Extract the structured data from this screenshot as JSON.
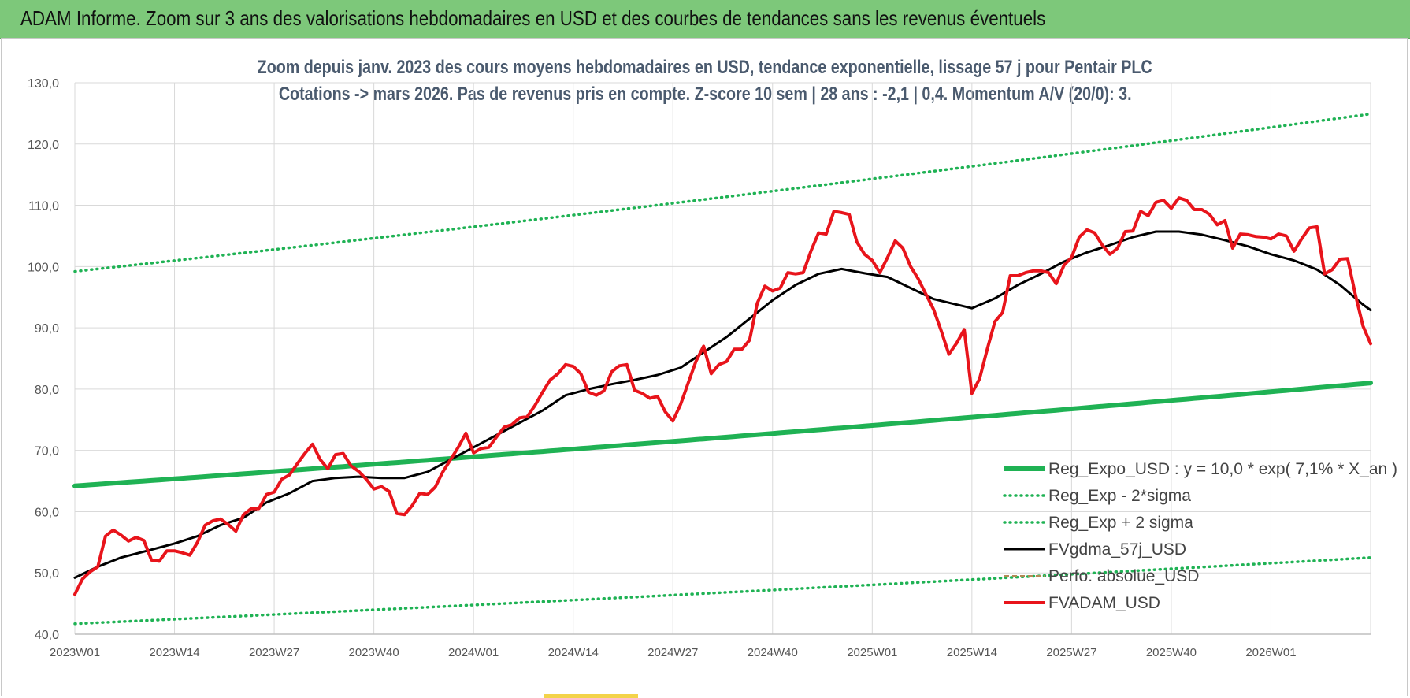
{
  "banner": {
    "title": "ADAM Informe. Zoom sur 3 ans des valorisations hebdomadaires en USD et des courbes de tendances sans les revenus éventuels",
    "color": "#7dc87a"
  },
  "chart_data": {
    "type": "line",
    "title_line1": "Zoom depuis janv. 2023 des cours moyens hebdomadaires en USD, tendance exponentielle, lissage 57 j pour Pentair PLC",
    "title_line2": "Cotations -> mars 2026. Pas de revenus pris en compte. Z-score 10 sem | 28 ans : -2,1 | 0,4. Momentum A/V (20/0): 3.",
    "ylim": [
      40,
      130
    ],
    "yticks": [
      "40,0",
      "50,0",
      "60,0",
      "70,0",
      "80,0",
      "90,0",
      "100,0",
      "110,0",
      "120,0",
      "130,0"
    ],
    "xtick_labels": [
      "2023W01",
      "2023W14",
      "2023W27",
      "2023W40",
      "2024W01",
      "2024W14",
      "2024W27",
      "2024W40",
      "2025W01",
      "2025W14",
      "2025W27",
      "2025W40",
      "2026W01"
    ],
    "xtick_index": [
      0,
      13,
      26,
      39,
      52,
      65,
      78,
      91,
      104,
      117,
      130,
      143,
      156
    ],
    "n_weeks": 170,
    "grid": true,
    "legend_position": "bottom-right",
    "series": [
      {
        "name": "Reg_Expo_USD : y = 10,0 * exp( 7,1% *  X_an )",
        "color": "#1fb254",
        "style": "solid-thick",
        "points": [
          [
            0,
            64.2
          ],
          [
            169,
            81.0
          ]
        ]
      },
      {
        "name": "Reg_Exp - 2*sigma",
        "color": "#1fb254",
        "style": "dotted",
        "points": [
          [
            0,
            41.7
          ],
          [
            169,
            52.5
          ]
        ]
      },
      {
        "name": "Reg_Exp + 2 sigma",
        "color": "#1fb254",
        "style": "dotted",
        "points": [
          [
            0,
            99.2
          ],
          [
            169,
            124.9
          ]
        ]
      },
      {
        "name": "FVgdma_57j_USD",
        "color": "#000000",
        "style": "solid",
        "points": [
          [
            0,
            49.2
          ],
          [
            3,
            51.0
          ],
          [
            6,
            52.5
          ],
          [
            10,
            53.8
          ],
          [
            13,
            54.8
          ],
          [
            16,
            56.0
          ],
          [
            19,
            57.8
          ],
          [
            22,
            59.0
          ],
          [
            25,
            61.5
          ],
          [
            28,
            63.0
          ],
          [
            31,
            65.0
          ],
          [
            34,
            65.5
          ],
          [
            37,
            65.7
          ],
          [
            40,
            65.5
          ],
          [
            43,
            65.5
          ],
          [
            46,
            66.5
          ],
          [
            49,
            68.5
          ],
          [
            52,
            70.5
          ],
          [
            55,
            72.5
          ],
          [
            58,
            74.5
          ],
          [
            61,
            76.5
          ],
          [
            64,
            79.0
          ],
          [
            67,
            80.0
          ],
          [
            70,
            80.8
          ],
          [
            73,
            81.5
          ],
          [
            76,
            82.3
          ],
          [
            79,
            83.5
          ],
          [
            82,
            86.0
          ],
          [
            85,
            88.5
          ],
          [
            88,
            91.5
          ],
          [
            91,
            94.5
          ],
          [
            94,
            97.0
          ],
          [
            97,
            98.8
          ],
          [
            100,
            99.6
          ],
          [
            103,
            98.9
          ],
          [
            106,
            98.3
          ],
          [
            109,
            96.5
          ],
          [
            112,
            94.7
          ],
          [
            115,
            93.8
          ],
          [
            117,
            93.2
          ],
          [
            120,
            94.8
          ],
          [
            123,
            97.0
          ],
          [
            126,
            98.8
          ],
          [
            129,
            100.8
          ],
          [
            132,
            102.3
          ],
          [
            135,
            103.5
          ],
          [
            138,
            104.8
          ],
          [
            141,
            105.7
          ],
          [
            144,
            105.7
          ],
          [
            147,
            105.2
          ],
          [
            150,
            104.3
          ],
          [
            153,
            103.3
          ],
          [
            156,
            102.0
          ],
          [
            159,
            101.0
          ],
          [
            162,
            99.5
          ],
          [
            165,
            97.0
          ],
          [
            168,
            93.8
          ],
          [
            169,
            92.9
          ]
        ]
      },
      {
        "name": "Perfo. absolue_USD",
        "color": "#b38a55",
        "style": "dashed",
        "points": []
      },
      {
        "name": "FVADAM_USD",
        "color": "#e8141b",
        "style": "solid-thick",
        "points": [
          [
            0,
            46.5
          ],
          [
            1,
            49.0
          ],
          [
            2,
            50.2
          ],
          [
            3,
            51.0
          ],
          [
            4,
            56.0
          ],
          [
            5,
            57.0
          ],
          [
            6,
            56.2
          ],
          [
            7,
            55.2
          ],
          [
            8,
            55.8
          ],
          [
            9,
            55.3
          ],
          [
            10,
            52.1
          ],
          [
            11,
            51.9
          ],
          [
            12,
            53.6
          ],
          [
            13,
            53.6
          ],
          [
            14,
            53.3
          ],
          [
            15,
            52.9
          ],
          [
            16,
            55.0
          ],
          [
            17,
            57.8
          ],
          [
            18,
            58.5
          ],
          [
            19,
            58.8
          ],
          [
            20,
            57.9
          ],
          [
            21,
            56.8
          ],
          [
            22,
            59.5
          ],
          [
            23,
            60.5
          ],
          [
            24,
            60.5
          ],
          [
            25,
            62.8
          ],
          [
            26,
            63.2
          ],
          [
            27,
            65.3
          ],
          [
            28,
            66.0
          ],
          [
            29,
            67.8
          ],
          [
            30,
            69.5
          ],
          [
            31,
            71.0
          ],
          [
            32,
            68.5
          ],
          [
            33,
            67.0
          ],
          [
            34,
            69.3
          ],
          [
            35,
            69.5
          ],
          [
            36,
            67.5
          ],
          [
            37,
            66.6
          ],
          [
            38,
            65.3
          ],
          [
            39,
            63.7
          ],
          [
            40,
            64.1
          ],
          [
            41,
            63.3
          ],
          [
            42,
            59.7
          ],
          [
            43,
            59.5
          ],
          [
            44,
            61.0
          ],
          [
            45,
            63.0
          ],
          [
            46,
            62.8
          ],
          [
            47,
            64.0
          ],
          [
            48,
            66.5
          ],
          [
            49,
            68.5
          ],
          [
            50,
            70.5
          ],
          [
            51,
            72.8
          ],
          [
            52,
            69.6
          ],
          [
            53,
            70.3
          ],
          [
            54,
            70.5
          ],
          [
            55,
            72.2
          ],
          [
            56,
            73.8
          ],
          [
            57,
            74.2
          ],
          [
            58,
            75.3
          ],
          [
            59,
            75.5
          ],
          [
            60,
            77.3
          ],
          [
            61,
            79.5
          ],
          [
            62,
            81.5
          ],
          [
            63,
            82.5
          ],
          [
            64,
            84.0
          ],
          [
            65,
            83.7
          ],
          [
            66,
            82.5
          ],
          [
            67,
            79.5
          ],
          [
            68,
            79.0
          ],
          [
            69,
            79.7
          ],
          [
            70,
            82.8
          ],
          [
            71,
            83.8
          ],
          [
            72,
            84.0
          ],
          [
            73,
            79.8
          ],
          [
            74,
            79.3
          ],
          [
            75,
            78.5
          ],
          [
            76,
            78.8
          ],
          [
            77,
            76.3
          ],
          [
            78,
            74.8
          ],
          [
            79,
            77.5
          ],
          [
            80,
            81.0
          ],
          [
            81,
            84.5
          ],
          [
            82,
            87.0
          ],
          [
            83,
            82.5
          ],
          [
            84,
            84.0
          ],
          [
            85,
            84.5
          ],
          [
            86,
            86.5
          ],
          [
            87,
            86.5
          ],
          [
            88,
            88.0
          ],
          [
            89,
            94.0
          ],
          [
            90,
            96.8
          ],
          [
            91,
            96.0
          ],
          [
            92,
            96.5
          ],
          [
            93,
            99.0
          ],
          [
            94,
            98.8
          ],
          [
            95,
            99.0
          ],
          [
            96,
            102.5
          ],
          [
            97,
            105.5
          ],
          [
            98,
            105.3
          ],
          [
            99,
            109.0
          ],
          [
            100,
            108.8
          ],
          [
            101,
            108.5
          ],
          [
            102,
            104.0
          ],
          [
            103,
            102.0
          ],
          [
            104,
            101.0
          ],
          [
            105,
            99.0
          ],
          [
            106,
            101.5
          ],
          [
            107,
            104.2
          ],
          [
            108,
            103.0
          ],
          [
            109,
            100.0
          ],
          [
            110,
            98.0
          ],
          [
            111,
            95.5
          ],
          [
            112,
            93.0
          ],
          [
            113,
            89.5
          ],
          [
            114,
            85.7
          ],
          [
            115,
            87.5
          ],
          [
            116,
            89.7
          ],
          [
            117,
            79.3
          ],
          [
            118,
            81.7
          ],
          [
            119,
            86.5
          ],
          [
            120,
            91.0
          ],
          [
            121,
            92.5
          ],
          [
            122,
            98.5
          ],
          [
            123,
            98.5
          ],
          [
            124,
            99.0
          ],
          [
            125,
            99.3
          ],
          [
            126,
            99.3
          ],
          [
            127,
            99.0
          ],
          [
            128,
            97.2
          ],
          [
            129,
            100.2
          ],
          [
            130,
            101.5
          ],
          [
            131,
            104.8
          ],
          [
            132,
            106.0
          ],
          [
            133,
            105.5
          ],
          [
            134,
            103.5
          ],
          [
            135,
            102.0
          ],
          [
            136,
            103.0
          ],
          [
            137,
            105.7
          ],
          [
            138,
            105.8
          ],
          [
            139,
            109.0
          ],
          [
            140,
            108.3
          ],
          [
            141,
            110.5
          ],
          [
            142,
            110.8
          ],
          [
            143,
            109.5
          ],
          [
            144,
            111.2
          ],
          [
            145,
            110.8
          ],
          [
            146,
            109.3
          ],
          [
            147,
            109.3
          ],
          [
            148,
            108.5
          ],
          [
            149,
            106.8
          ],
          [
            150,
            107.5
          ],
          [
            151,
            103.0
          ],
          [
            152,
            105.3
          ],
          [
            153,
            105.2
          ],
          [
            154,
            104.9
          ],
          [
            155,
            104.8
          ],
          [
            156,
            104.5
          ],
          [
            157,
            105.3
          ],
          [
            158,
            105.0
          ],
          [
            159,
            102.5
          ],
          [
            160,
            104.5
          ],
          [
            161,
            106.3
          ],
          [
            162,
            106.5
          ],
          [
            163,
            98.8
          ],
          [
            164,
            99.5
          ],
          [
            165,
            101.2
          ],
          [
            166,
            101.3
          ],
          [
            167,
            95.5
          ],
          [
            168,
            90.3
          ],
          [
            169,
            87.4
          ]
        ]
      }
    ]
  }
}
